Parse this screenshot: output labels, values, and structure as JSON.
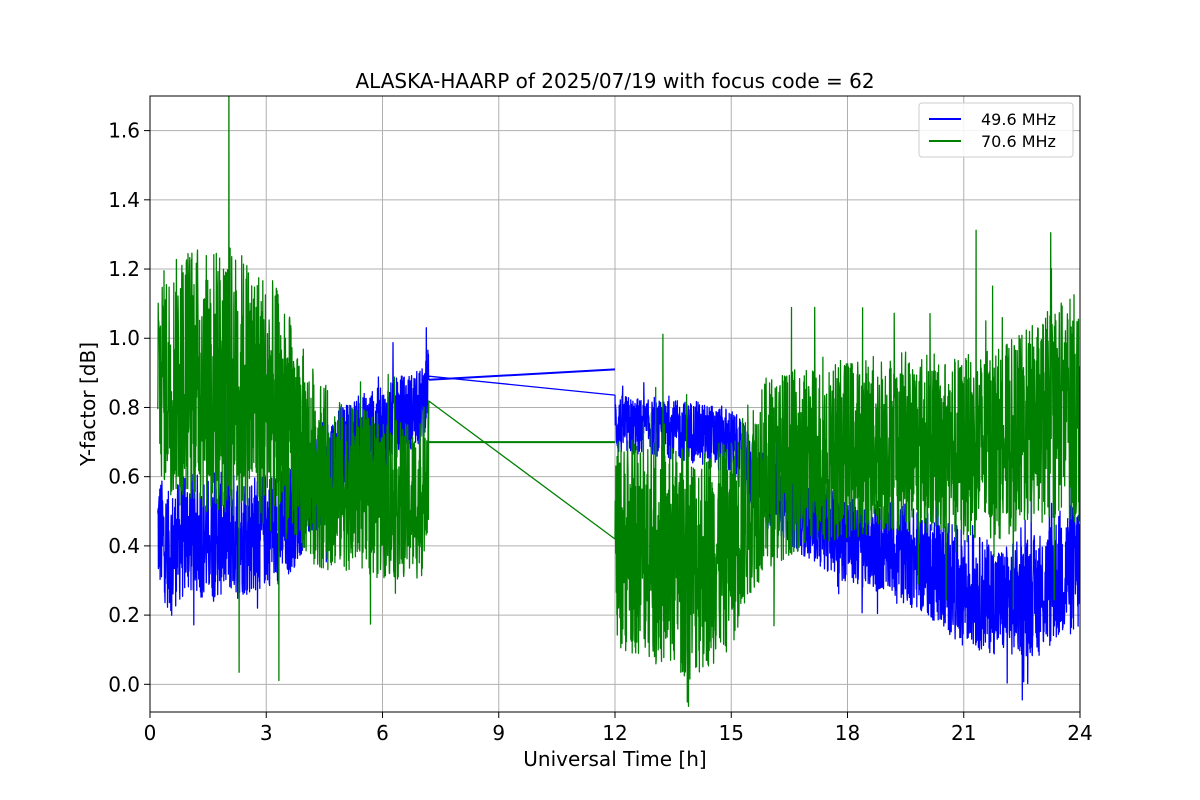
{
  "chart_data": {
    "type": "line",
    "title": "ALASKA-HAARP of 2025/07/19 with focus code = 62",
    "xlabel": "Universal Time [h]",
    "ylabel": "Y-factor [dB]",
    "xlim": [
      0,
      24
    ],
    "ylim": [
      -0.08,
      1.7
    ],
    "xticks": [
      0,
      3,
      6,
      9,
      12,
      15,
      18,
      21,
      24
    ],
    "yticks": [
      0.0,
      0.2,
      0.4,
      0.6,
      0.8,
      1.0,
      1.2,
      1.4,
      1.6
    ],
    "grid": true,
    "legend_position": "top-right",
    "series": [
      {
        "name": "49.6 MHz",
        "color": "#0000ff",
        "points": [
          [
            0.2,
            0.45
          ],
          [
            0.5,
            0.38
          ],
          [
            1.0,
            0.44
          ],
          [
            1.5,
            0.42
          ],
          [
            2.0,
            0.44
          ],
          [
            2.5,
            0.43
          ],
          [
            3.0,
            0.45
          ],
          [
            3.5,
            0.46
          ],
          [
            4.0,
            0.55
          ],
          [
            4.5,
            0.62
          ],
          [
            5.0,
            0.68
          ],
          [
            5.5,
            0.72
          ],
          [
            6.0,
            0.74
          ],
          [
            6.5,
            0.78
          ],
          [
            7.0,
            0.8
          ],
          [
            7.2,
            0.88
          ],
          [
            12.0,
            0.91
          ],
          [
            12.0,
            0.75
          ],
          [
            13.0,
            0.74
          ],
          [
            14.0,
            0.73
          ],
          [
            15.0,
            0.7
          ],
          [
            15.5,
            0.62
          ],
          [
            16.0,
            0.55
          ],
          [
            17.0,
            0.48
          ],
          [
            18.0,
            0.42
          ],
          [
            19.0,
            0.4
          ],
          [
            20.0,
            0.35
          ],
          [
            21.0,
            0.28
          ],
          [
            22.0,
            0.24
          ],
          [
            23.0,
            0.26
          ],
          [
            23.5,
            0.32
          ],
          [
            24.0,
            0.34
          ]
        ]
      },
      {
        "name": "70.6 MHz",
        "color": "#008000",
        "points": [
          [
            0.2,
            0.9
          ],
          [
            0.5,
            0.88
          ],
          [
            1.0,
            0.9
          ],
          [
            1.5,
            0.88
          ],
          [
            2.0,
            0.87
          ],
          [
            2.5,
            0.86
          ],
          [
            3.0,
            0.82
          ],
          [
            3.5,
            0.76
          ],
          [
            4.0,
            0.66
          ],
          [
            4.5,
            0.6
          ],
          [
            5.0,
            0.57
          ],
          [
            5.5,
            0.56
          ],
          [
            6.0,
            0.54
          ],
          [
            6.5,
            0.53
          ],
          [
            7.0,
            0.52
          ],
          [
            7.2,
            0.7
          ],
          [
            12.0,
            0.7
          ],
          [
            12.0,
            0.4
          ],
          [
            13.0,
            0.38
          ],
          [
            14.0,
            0.35
          ],
          [
            15.0,
            0.4
          ],
          [
            15.5,
            0.55
          ],
          [
            16.0,
            0.62
          ],
          [
            17.0,
            0.66
          ],
          [
            18.0,
            0.68
          ],
          [
            19.0,
            0.7
          ],
          [
            20.0,
            0.7
          ],
          [
            21.0,
            0.68
          ],
          [
            22.0,
            0.7
          ],
          [
            23.0,
            0.76
          ],
          [
            23.5,
            0.8
          ],
          [
            24.0,
            0.8
          ]
        ]
      }
    ],
    "noise": {
      "49.6 MHz": [
        [
          0.2,
          0.17
        ],
        [
          1.0,
          0.18
        ],
        [
          2.0,
          0.18
        ],
        [
          3.0,
          0.17
        ],
        [
          4.0,
          0.16
        ],
        [
          5.0,
          0.13
        ],
        [
          6.0,
          0.12
        ],
        [
          7.0,
          0.11
        ],
        [
          12.0,
          0.09
        ],
        [
          13.0,
          0.08
        ],
        [
          14.0,
          0.09
        ],
        [
          15.0,
          0.1
        ],
        [
          16.0,
          0.11
        ],
        [
          17.0,
          0.12
        ],
        [
          18.0,
          0.13
        ],
        [
          19.0,
          0.14
        ],
        [
          20.0,
          0.15
        ],
        [
          21.0,
          0.17
        ],
        [
          22.0,
          0.16
        ],
        [
          23.0,
          0.18
        ],
        [
          24.0,
          0.2
        ]
      ],
      "70.6 MHz": [
        [
          0.2,
          0.3
        ],
        [
          1.0,
          0.38
        ],
        [
          2.0,
          0.4
        ],
        [
          3.0,
          0.38
        ],
        [
          4.0,
          0.3
        ],
        [
          5.0,
          0.24
        ],
        [
          6.0,
          0.24
        ],
        [
          7.0,
          0.22
        ],
        [
          12.0,
          0.3
        ],
        [
          13.0,
          0.32
        ],
        [
          14.0,
          0.34
        ],
        [
          15.0,
          0.3
        ],
        [
          16.0,
          0.28
        ],
        [
          17.0,
          0.26
        ],
        [
          18.0,
          0.26
        ],
        [
          19.0,
          0.26
        ],
        [
          20.0,
          0.26
        ],
        [
          21.0,
          0.27
        ],
        [
          22.0,
          0.28
        ],
        [
          23.0,
          0.3
        ],
        [
          24.0,
          0.34
        ]
      ]
    }
  }
}
